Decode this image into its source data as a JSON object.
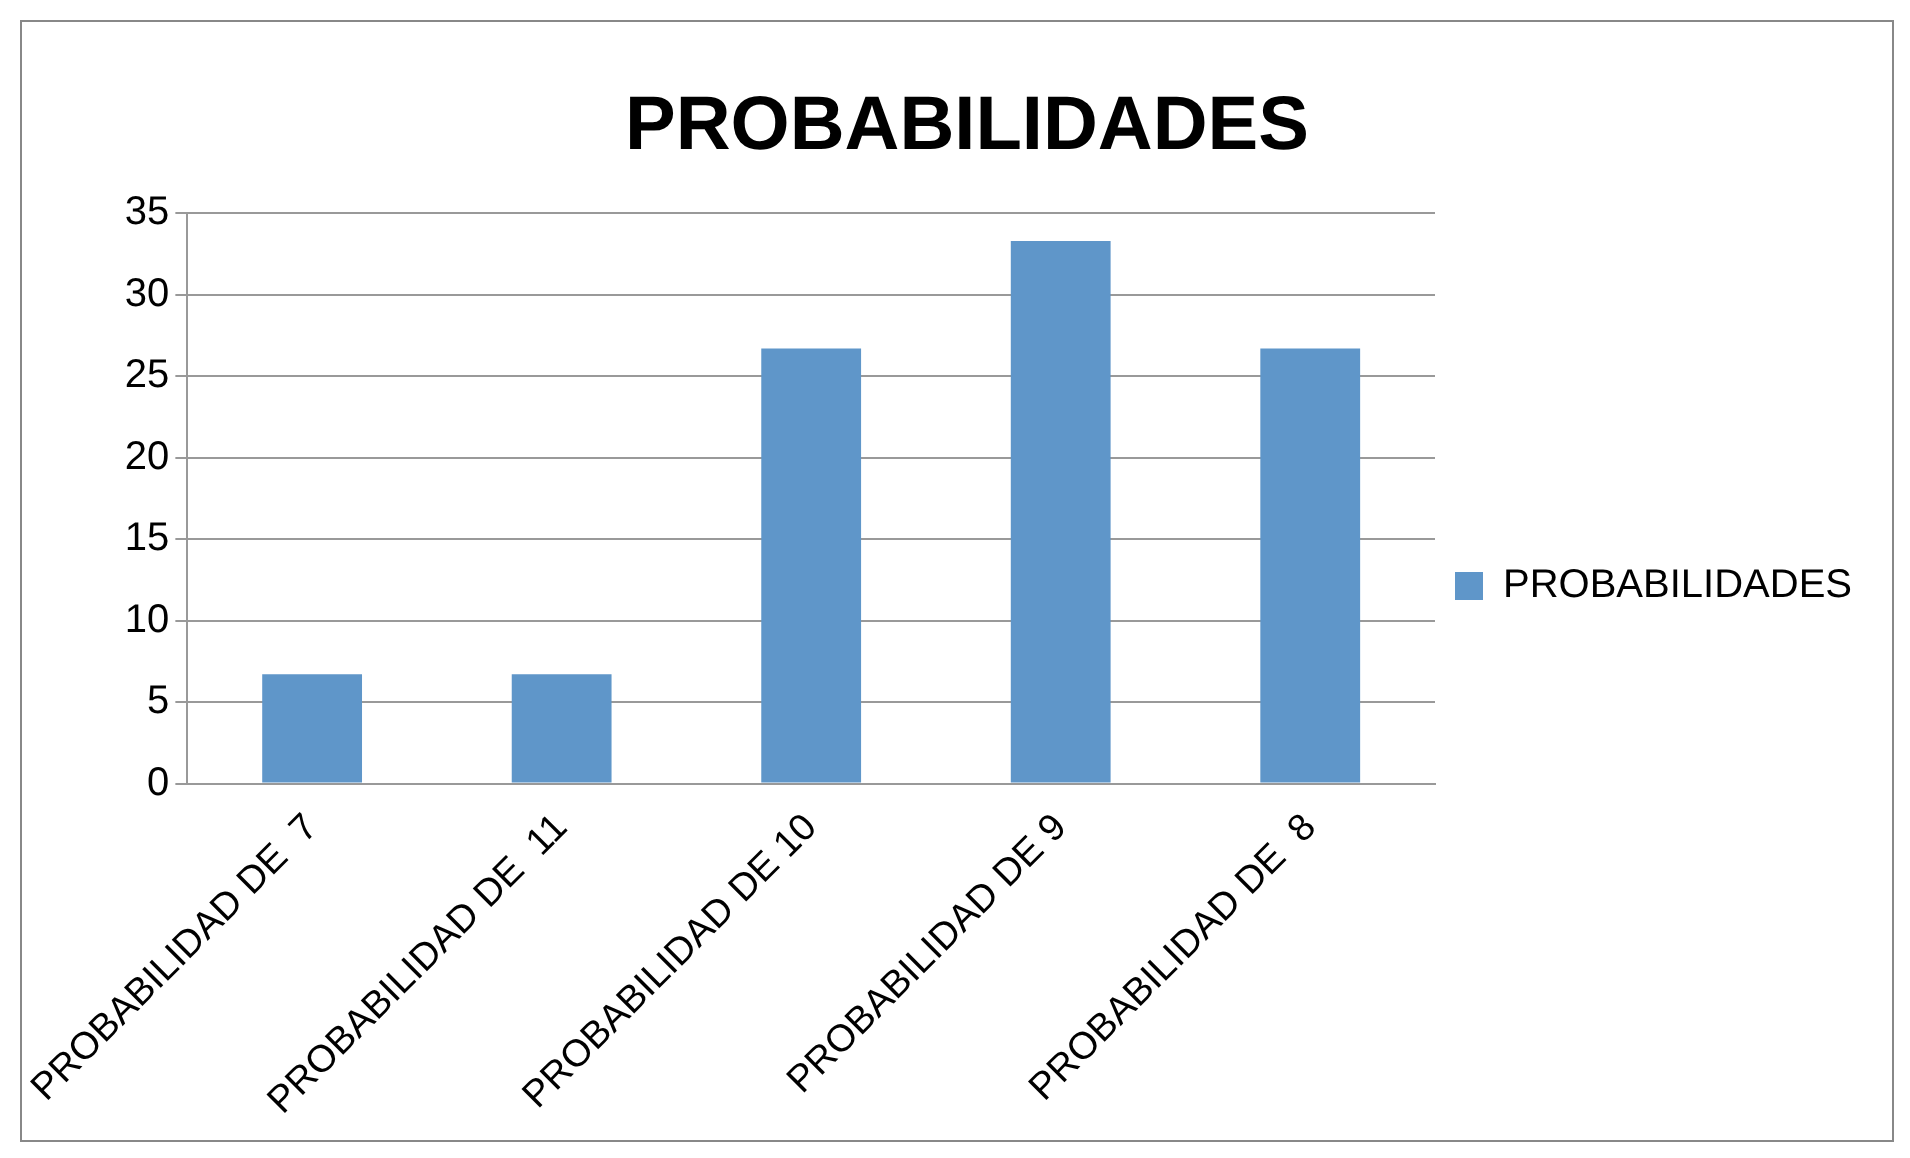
{
  "chart_data": {
    "type": "bar",
    "title": "PROBABILIDADES",
    "categories": [
      "PROBABILIDAD DE  7",
      "PROBABILIDAD DE  11",
      "PROBABILIDAD DE 10",
      "PROBABILIDAD DE 9",
      "PROBABILIDAD DE  8"
    ],
    "series": [
      {
        "name": "PROBABILIDADES",
        "color": "#5f96c9",
        "values": [
          6.7,
          6.7,
          26.7,
          33.3,
          26.7
        ]
      }
    ],
    "ylim": [
      0,
      35
    ],
    "yticks": [
      0,
      5,
      10,
      15,
      20,
      25,
      30,
      35
    ],
    "grid": "y",
    "legend": "right"
  }
}
